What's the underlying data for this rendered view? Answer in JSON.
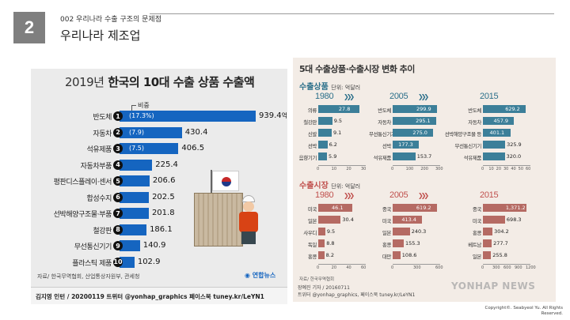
{
  "header": {
    "number": "2",
    "subtitle": "002 우리나라 수출 구조의 문제점",
    "title": "우리나라 제조업"
  },
  "left_chart": {
    "title_year": "2019년",
    "title_main": "한국의 10대 수출 상품 수출액",
    "share_label": "비중",
    "unit": "억달러",
    "source": "자료/ 한국무역협회, 산업통상자원부, 관세청",
    "credit": "김지영 인턴 / 20200119 트위터 @yonhap_graphics 페이스북 tuney.kr/LeYN1",
    "logo": "연합뉴스",
    "chart_data": {
      "type": "bar",
      "title": "2019년 한국의 10대 수출 상품 수출액",
      "unit": "억달러",
      "categories": [
        "반도체",
        "자동차",
        "석유제품",
        "자동차부품",
        "평판디스플레이·센서",
        "합성수지",
        "선박해양구조물·부품",
        "철강판",
        "무선통신기기",
        "플라스틱 제품"
      ],
      "ranks": [
        "1",
        "2",
        "3",
        "4",
        "5",
        "6",
        "7",
        "8",
        "9",
        "10"
      ],
      "values": [
        939.4,
        430.4,
        406.5,
        225.4,
        206.6,
        202.5,
        201.8,
        186.1,
        140.9,
        102.9
      ],
      "value_labels": [
        "939.4",
        "430.4",
        "406.5",
        "225.4",
        "206.6",
        "202.5",
        "201.8",
        "186.1",
        "140.9",
        "102.9"
      ],
      "shares": [
        "(17.3%)",
        "(7.9)",
        "(7.5)",
        "",
        "",
        "",
        "",
        "",
        "",
        ""
      ]
    }
  },
  "right_chart": {
    "title": "5대 수출상품·수출시장 변화 추이",
    "unit_label": "단위: 억달러",
    "credit_line1": "장예진 기자 / 20160711",
    "credit_line2": "트위터 @yonhap_graphics, 페이스북 tuney.kr/LeYN1",
    "source_small": "자료/ 한국무역협회",
    "colors": {
      "products_title": "#2b6f8a",
      "products_bar": "#3c7f99",
      "markets_title": "#c0504d",
      "markets_bar": "#b56a63"
    },
    "chart_data": [
      {
        "type": "bar",
        "title": "수출상품",
        "unit": "단위: 억달러",
        "panels": [
          {
            "year": "1980",
            "categories": [
              "의류",
              "철강판",
              "신발",
              "선박",
              "음향기기"
            ],
            "values": [
              27.8,
              9.5,
              9.1,
              6.2,
              5.9
            ],
            "value_labels": [
              "27.8",
              "9.5",
              "9.1",
              "6.2",
              "5.9"
            ],
            "ticks": [
              "0",
              "10",
              "20",
              "30"
            ],
            "xlim": [
              0,
              30
            ]
          },
          {
            "year": "2005",
            "categories": [
              "반도체",
              "자동차",
              "무선통신기기",
              "선박",
              "석유제품"
            ],
            "values": [
              299.9,
              295.1,
              275.0,
              177.3,
              153.7
            ],
            "value_labels": [
              "299.9",
              "295.1",
              "275.0",
              "177.3",
              "153.7"
            ],
            "ticks": [
              "0",
              "100",
              "200",
              "300"
            ],
            "xlim": [
              0,
              300
            ]
          },
          {
            "year": "2015",
            "categories": [
              "반도체",
              "자동차",
              "선박해양구조물 등",
              "무선통신기기",
              "석유제품"
            ],
            "values": [
              629.2,
              457.9,
              401.1,
              325.9,
              320.0
            ],
            "value_labels": [
              "629.2",
              "457.9",
              "401.1",
              "325.9",
              "320.0"
            ],
            "ticks": [
              "0",
              "10",
              "20",
              "30",
              "40",
              "50",
              "60"
            ],
            "xlim": [
              0,
              650
            ]
          }
        ]
      },
      {
        "type": "bar",
        "title": "수출시장",
        "unit": "단위: 억달러",
        "panels": [
          {
            "year": "1980",
            "categories": [
              "미국",
              "일본",
              "사우디",
              "독일",
              "홍콩"
            ],
            "values": [
              46.1,
              30.4,
              9.5,
              8.8,
              8.2
            ],
            "value_labels": [
              "46.1",
              "30.4",
              "9.5",
              "8.8",
              "8.2"
            ],
            "ticks": [
              "0",
              "20",
              "40",
              "60"
            ],
            "xlim": [
              0,
              60
            ]
          },
          {
            "year": "2005",
            "categories": [
              "중국",
              "미국",
              "일본",
              "홍콩",
              "대만"
            ],
            "values": [
              619.2,
              413.4,
              240.3,
              155.3,
              108.6
            ],
            "value_labels": [
              "619.2",
              "413.4",
              "240.3",
              "155.3",
              "108.6"
            ],
            "ticks": [
              "0",
              "300",
              "600"
            ],
            "xlim": [
              0,
              620
            ]
          },
          {
            "year": "2015",
            "categories": [
              "중국",
              "미국",
              "홍콩",
              "베트남",
              "일본"
            ],
            "values": [
              1371.2,
              698.3,
              304.2,
              277.7,
              255.8
            ],
            "value_labels": [
              "1,371.2",
              "698.3",
              "304.2",
              "277.7",
              "255.8"
            ],
            "ticks": [
              "0",
              "300",
              "600",
              "900",
              "1200"
            ],
            "xlim": [
              0,
              1400
            ]
          }
        ]
      }
    ]
  },
  "watermark": "YONHAP NEWS",
  "copyright": [
    "Copyright©. Seabyeol Yu. All Rights",
    "Reserved."
  ]
}
